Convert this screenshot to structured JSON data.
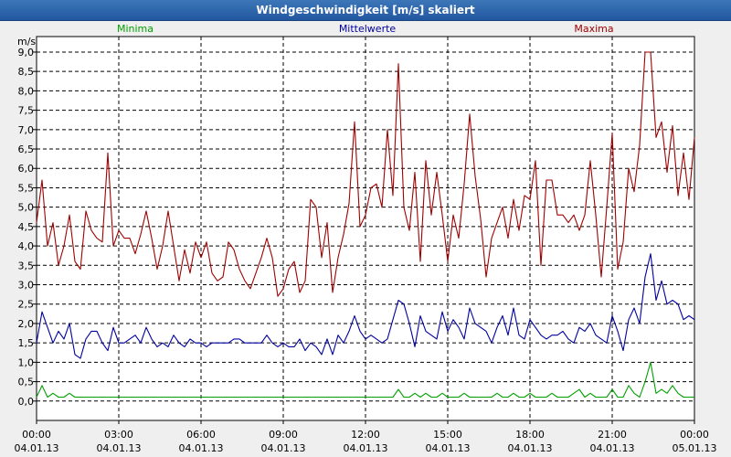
{
  "window": {
    "title": "Windgeschwindigkeit [m/s] skaliert"
  },
  "chart_data": {
    "type": "line",
    "title": "Windgeschwindigkeit [m/s] skaliert",
    "ylabel": "m/s",
    "ylim": [
      -0.5,
      9.4
    ],
    "yticks": [
      "0,0",
      "0,5",
      "1,0",
      "1,5",
      "2,0",
      "2,5",
      "3,0",
      "3,5",
      "4,0",
      "4,5",
      "5,0",
      "5,5",
      "6,0",
      "6,5",
      "7,0",
      "7,5",
      "8,0",
      "8,5",
      "9,0"
    ],
    "xticks": [
      {
        "time": "00:00",
        "date": "04.01.13"
      },
      {
        "time": "03:00",
        "date": "04.01.13"
      },
      {
        "time": "06:00",
        "date": "04.01.13"
      },
      {
        "time": "09:00",
        "date": "04.01.13"
      },
      {
        "time": "12:00",
        "date": "04.01.13"
      },
      {
        "time": "15:00",
        "date": "04.01.13"
      },
      {
        "time": "18:00",
        "date": "04.01.13"
      },
      {
        "time": "21:00",
        "date": "04.01.13"
      },
      {
        "time": "00:00",
        "date": "05.01.13"
      }
    ],
    "x_hours": [
      0,
      0.2,
      0.4,
      0.6,
      0.8,
      1,
      1.2,
      1.4,
      1.6,
      1.8,
      2,
      2.2,
      2.4,
      2.6,
      2.8,
      3,
      3.2,
      3.4,
      3.6,
      3.8,
      4,
      4.2,
      4.4,
      4.6,
      4.8,
      5,
      5.2,
      5.4,
      5.6,
      5.8,
      6,
      6.2,
      6.4,
      6.6,
      6.8,
      7,
      7.2,
      7.4,
      7.6,
      7.8,
      8,
      8.2,
      8.4,
      8.6,
      8.8,
      9,
      9.2,
      9.4,
      9.6,
      9.8,
      10,
      10.2,
      10.4,
      10.6,
      10.8,
      11,
      11.2,
      11.4,
      11.6,
      11.8,
      12,
      12.2,
      12.4,
      12.6,
      12.8,
      13,
      13.2,
      13.4,
      13.6,
      13.8,
      14,
      14.2,
      14.4,
      14.6,
      14.8,
      15,
      15.2,
      15.4,
      15.6,
      15.8,
      16,
      16.2,
      16.4,
      16.6,
      16.8,
      17,
      17.2,
      17.4,
      17.6,
      17.8,
      18,
      18.2,
      18.4,
      18.6,
      18.8,
      19,
      19.2,
      19.4,
      19.6,
      19.8,
      20,
      20.2,
      20.4,
      20.6,
      20.8,
      21,
      21.2,
      21.4,
      21.6,
      21.8,
      22,
      22.2,
      22.4,
      22.6,
      22.8,
      23,
      23.2,
      23.4,
      23.6,
      23.8,
      24
    ],
    "series": [
      {
        "name": "Maxima",
        "color": "#a00000",
        "values": [
          4.6,
          5.7,
          4.0,
          4.6,
          3.5,
          4.0,
          4.8,
          3.6,
          3.4,
          4.9,
          4.4,
          4.2,
          4.1,
          6.4,
          4.0,
          4.4,
          4.2,
          4.2,
          3.8,
          4.3,
          4.9,
          4.2,
          3.4,
          4.0,
          4.9,
          4.0,
          3.1,
          3.9,
          3.3,
          4.1,
          3.7,
          4.1,
          3.3,
          3.1,
          3.2,
          4.1,
          3.9,
          3.4,
          3.1,
          2.9,
          3.3,
          3.7,
          4.2,
          3.7,
          2.7,
          2.9,
          3.4,
          3.6,
          2.8,
          3.1,
          5.2,
          5.0,
          3.7,
          4.6,
          2.8,
          3.7,
          4.3,
          5.1,
          7.2,
          4.5,
          4.8,
          5.5,
          5.6,
          5.0,
          7.0,
          5.3,
          8.7,
          5.0,
          4.4,
          5.9,
          3.6,
          6.2,
          4.8,
          5.9,
          4.8,
          3.6,
          4.8,
          4.2,
          5.6,
          7.4,
          5.8,
          4.7,
          3.2,
          4.2,
          4.6,
          5.0,
          4.2,
          5.2,
          4.4,
          5.3,
          5.2,
          6.2,
          3.5,
          5.7,
          5.7,
          4.8,
          4.8,
          4.6,
          4.8,
          4.4,
          4.8,
          6.2,
          4.8,
          3.2,
          5.0,
          6.9,
          3.4,
          4.1,
          6.0,
          5.4,
          6.6,
          9.0,
          9.0,
          6.8,
          7.2,
          5.9,
          7.1,
          5.3,
          6.4,
          5.2,
          6.8
        ]
      },
      {
        "name": "Mittelwerte",
        "color": "#0000a0",
        "values": [
          1.5,
          2.3,
          1.9,
          1.5,
          1.8,
          1.6,
          2.0,
          1.2,
          1.1,
          1.6,
          1.8,
          1.8,
          1.5,
          1.3,
          1.9,
          1.5,
          1.5,
          1.6,
          1.7,
          1.5,
          1.9,
          1.6,
          1.4,
          1.5,
          1.4,
          1.7,
          1.5,
          1.4,
          1.6,
          1.5,
          1.5,
          1.4,
          1.5,
          1.5,
          1.5,
          1.5,
          1.6,
          1.6,
          1.5,
          1.5,
          1.5,
          1.5,
          1.7,
          1.5,
          1.4,
          1.5,
          1.4,
          1.4,
          1.6,
          1.3,
          1.5,
          1.4,
          1.2,
          1.6,
          1.2,
          1.7,
          1.5,
          1.8,
          2.2,
          1.8,
          1.6,
          1.7,
          1.6,
          1.5,
          1.6,
          2.1,
          2.6,
          2.5,
          2.0,
          1.4,
          2.2,
          1.8,
          1.7,
          1.6,
          2.3,
          1.8,
          2.1,
          1.9,
          1.6,
          2.4,
          2.0,
          1.9,
          1.8,
          1.5,
          1.9,
          2.2,
          1.7,
          2.4,
          1.7,
          1.6,
          2.1,
          1.9,
          1.7,
          1.6,
          1.7,
          1.7,
          1.8,
          1.6,
          1.5,
          1.9,
          1.8,
          2.0,
          1.7,
          1.6,
          1.5,
          2.2,
          1.8,
          1.3,
          2.1,
          2.4,
          2.0,
          3.2,
          3.8,
          2.6,
          3.1,
          2.5,
          2.6,
          2.5,
          2.1,
          2.2,
          2.1
        ]
      },
      {
        "name": "Minima",
        "color": "#00a000",
        "values": [
          0.1,
          0.4,
          0.1,
          0.2,
          0.1,
          0.1,
          0.2,
          0.1,
          0.1,
          0.1,
          0.1,
          0.1,
          0.1,
          0.1,
          0.1,
          0.1,
          0.1,
          0.1,
          0.1,
          0.1,
          0.1,
          0.1,
          0.1,
          0.1,
          0.1,
          0.1,
          0.1,
          0.1,
          0.1,
          0.1,
          0.1,
          0.1,
          0.1,
          0.1,
          0.1,
          0.1,
          0.1,
          0.1,
          0.1,
          0.1,
          0.1,
          0.1,
          0.1,
          0.1,
          0.1,
          0.1,
          0.1,
          0.1,
          0.1,
          0.1,
          0.1,
          0.1,
          0.1,
          0.1,
          0.1,
          0.1,
          0.1,
          0.1,
          0.1,
          0.1,
          0.1,
          0.1,
          0.1,
          0.1,
          0.1,
          0.1,
          0.3,
          0.1,
          0.1,
          0.2,
          0.1,
          0.2,
          0.1,
          0.1,
          0.2,
          0.1,
          0.1,
          0.1,
          0.2,
          0.1,
          0.1,
          0.1,
          0.1,
          0.1,
          0.2,
          0.1,
          0.1,
          0.2,
          0.1,
          0.1,
          0.2,
          0.1,
          0.1,
          0.1,
          0.2,
          0.1,
          0.1,
          0.1,
          0.2,
          0.3,
          0.1,
          0.2,
          0.1,
          0.1,
          0.1,
          0.3,
          0.1,
          0.1,
          0.4,
          0.2,
          0.1,
          0.5,
          1.0,
          0.2,
          0.3,
          0.2,
          0.4,
          0.2,
          0.1,
          0.1,
          0.1
        ]
      }
    ]
  },
  "legend": {
    "minima": "Minima",
    "mittelwerte": "Mittelwerte",
    "maxima": "Maxima"
  },
  "colors": {
    "minima": "#00a000",
    "mittelwerte": "#0000a0",
    "maxima": "#a00000"
  }
}
